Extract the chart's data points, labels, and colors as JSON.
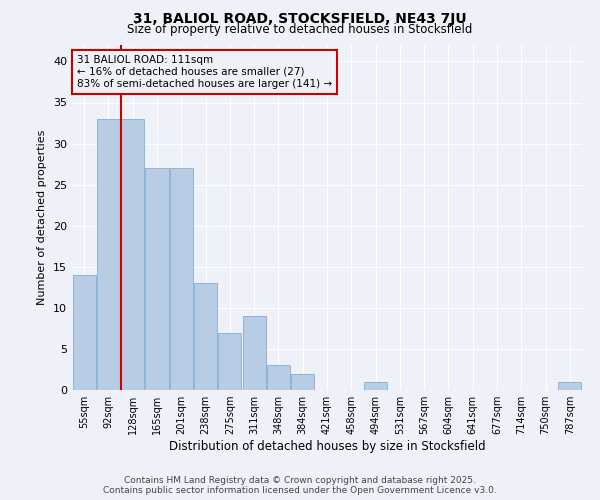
{
  "title1": "31, BALIOL ROAD, STOCKSFIELD, NE43 7JU",
  "title2": "Size of property relative to detached houses in Stocksfield",
  "xlabel": "Distribution of detached houses by size in Stocksfield",
  "ylabel": "Number of detached properties",
  "categories": [
    "55sqm",
    "92sqm",
    "128sqm",
    "165sqm",
    "201sqm",
    "238sqm",
    "275sqm",
    "311sqm",
    "348sqm",
    "384sqm",
    "421sqm",
    "458sqm",
    "494sqm",
    "531sqm",
    "567sqm",
    "604sqm",
    "641sqm",
    "677sqm",
    "714sqm",
    "750sqm",
    "787sqm"
  ],
  "values": [
    14,
    33,
    33,
    27,
    27,
    13,
    7,
    9,
    3,
    2,
    0,
    0,
    1,
    0,
    0,
    0,
    0,
    0,
    0,
    0,
    1
  ],
  "bar_color": "#b8cce4",
  "bar_edge_color": "#8db4d9",
  "vline_x": 1.52,
  "vline_color": "#cc0000",
  "annotation_title": "31 BALIOL ROAD: 111sqm",
  "annotation_line1": "← 16% of detached houses are smaller (27)",
  "annotation_line2": "83% of semi-detached houses are larger (141) →",
  "annotation_box_color": "#cc0000",
  "ylim": [
    0,
    42
  ],
  "yticks": [
    0,
    5,
    10,
    15,
    20,
    25,
    30,
    35,
    40
  ],
  "footer1": "Contains HM Land Registry data © Crown copyright and database right 2025.",
  "footer2": "Contains public sector information licensed under the Open Government Licence v3.0.",
  "background_color": "#eef2f8"
}
